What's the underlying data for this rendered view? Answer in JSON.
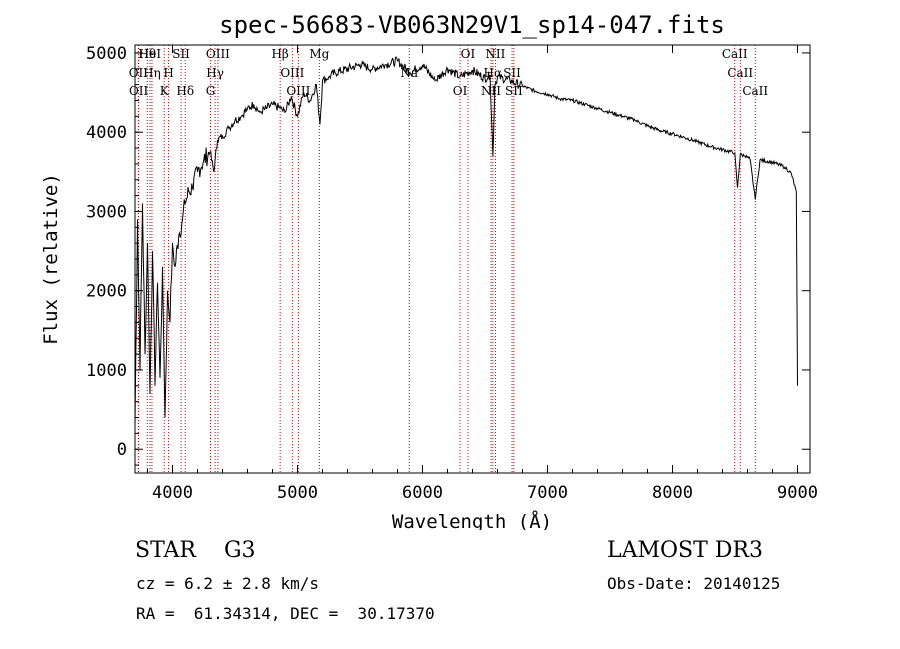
{
  "chart_data": {
    "type": "line",
    "title": "spec-56683-VB063N29V1_sp14-047.fits",
    "xlabel": "Wavelength (Å)",
    "ylabel": "Flux (relative)",
    "xlim": [
      3700,
      9100
    ],
    "ylim": [
      -300,
      5100
    ],
    "x_ticks": [
      4000,
      5000,
      6000,
      7000,
      8000,
      9000
    ],
    "y_ticks": [
      0,
      1000,
      2000,
      3000,
      4000,
      5000
    ],
    "series": [
      {
        "name": "spectrum",
        "x": [
          3700,
          3720,
          3740,
          3760,
          3780,
          3800,
          3820,
          3840,
          3860,
          3880,
          3900,
          3920,
          3940,
          3960,
          3980,
          4000,
          4020,
          4050,
          4080,
          4100,
          4130,
          4160,
          4200,
          4250,
          4300,
          4330,
          4360,
          4400,
          4450,
          4500,
          4550,
          4600,
          4650,
          4700,
          4750,
          4800,
          4861,
          4900,
          4950,
          5000,
          5050,
          5100,
          5150,
          5180,
          5200,
          5250,
          5300,
          5400,
          5500,
          5600,
          5700,
          5800,
          5900,
          6000,
          6100,
          6200,
          6300,
          6400,
          6500,
          6540,
          6563,
          6580,
          6600,
          6700,
          6800,
          6900,
          7000,
          7100,
          7200,
          7300,
          7400,
          7500,
          7600,
          7700,
          7800,
          7900,
          8000,
          8100,
          8200,
          8300,
          8400,
          8498,
          8520,
          8542,
          8580,
          8620,
          8662,
          8700,
          8800,
          8900,
          8950,
          8990,
          9000
        ],
        "y": [
          300,
          2900,
          1000,
          3100,
          1200,
          2600,
          700,
          2500,
          800,
          2100,
          900,
          2300,
          400,
          2000,
          1600,
          2600,
          2300,
          2700,
          2900,
          3100,
          3250,
          3300,
          3500,
          3650,
          3750,
          3500,
          3900,
          3950,
          4050,
          4150,
          4200,
          4300,
          4350,
          4250,
          4300,
          4350,
          4300,
          4250,
          4450,
          4200,
          4500,
          4400,
          4600,
          4100,
          4650,
          4700,
          4750,
          4800,
          4850,
          4800,
          4850,
          4900,
          4750,
          4850,
          4650,
          4800,
          4700,
          4780,
          4680,
          4720,
          3700,
          4600,
          4700,
          4650,
          4580,
          4520,
          4480,
          4420,
          4400,
          4350,
          4300,
          4250,
          4200,
          4150,
          4080,
          4020,
          3980,
          3930,
          3880,
          3820,
          3780,
          3740,
          3300,
          3720,
          3700,
          3660,
          3150,
          3650,
          3620,
          3560,
          3480,
          3250,
          800
        ]
      }
    ],
    "lines": [
      {
        "name": "Hθ",
        "wavelength": 3797.9
      },
      {
        "name": "OII",
        "wavelength": 3727.0
      },
      {
        "name": "OII",
        "wavelength": 3729.0
      },
      {
        "name": "HeI",
        "wavelength": 3819.6
      },
      {
        "name": "Hη",
        "wavelength": 3835.4
      },
      {
        "name": "K",
        "wavelength": 3933.7
      },
      {
        "name": "SII",
        "wavelength": 4068.6
      },
      {
        "name": "H",
        "wavelength": 3968.5
      },
      {
        "name": "Hδ",
        "wavelength": 4101.7
      },
      {
        "name": "OIII",
        "wavelength": 4363.2
      },
      {
        "name": "Hγ",
        "wavelength": 4340.5
      },
      {
        "name": "G",
        "wavelength": 4304.4
      },
      {
        "name": "Hβ",
        "wavelength": 4861.3
      },
      {
        "name": "OIII",
        "wavelength": 4958.9
      },
      {
        "name": "OIII",
        "wavelength": 5006.8
      },
      {
        "name": "Mg",
        "wavelength": 5175.0
      },
      {
        "name": "Na",
        "wavelength": 5894.0
      },
      {
        "name": "OI",
        "wavelength": 6300.3
      },
      {
        "name": "OI",
        "wavelength": 6363.8
      },
      {
        "name": "Hα",
        "wavelength": 6562.8
      },
      {
        "name": "NII",
        "wavelength": 6548.1
      },
      {
        "name": "NII",
        "wavelength": 6583.4
      },
      {
        "name": "SII",
        "wavelength": 6716.4
      },
      {
        "name": "SII",
        "wavelength": 6730.8
      },
      {
        "name": "CaII",
        "wavelength": 8498.0
      },
      {
        "name": "CaII",
        "wavelength": 8542.1
      },
      {
        "name": "CaII",
        "wavelength": 8662.1
      }
    ],
    "grid": false
  },
  "info": {
    "object_class": "STAR",
    "subclass": "G3",
    "survey": "LAMOST DR3",
    "cz": "cz = 6.2 ± 2.8 km/s",
    "obs_date": "Obs-Date: 20140125",
    "radec": "RA =  61.34314, DEC =  30.17370"
  },
  "colors": {
    "spectrum": "#000000",
    "line_markers": "#cc0000",
    "background": "#ffffff"
  }
}
